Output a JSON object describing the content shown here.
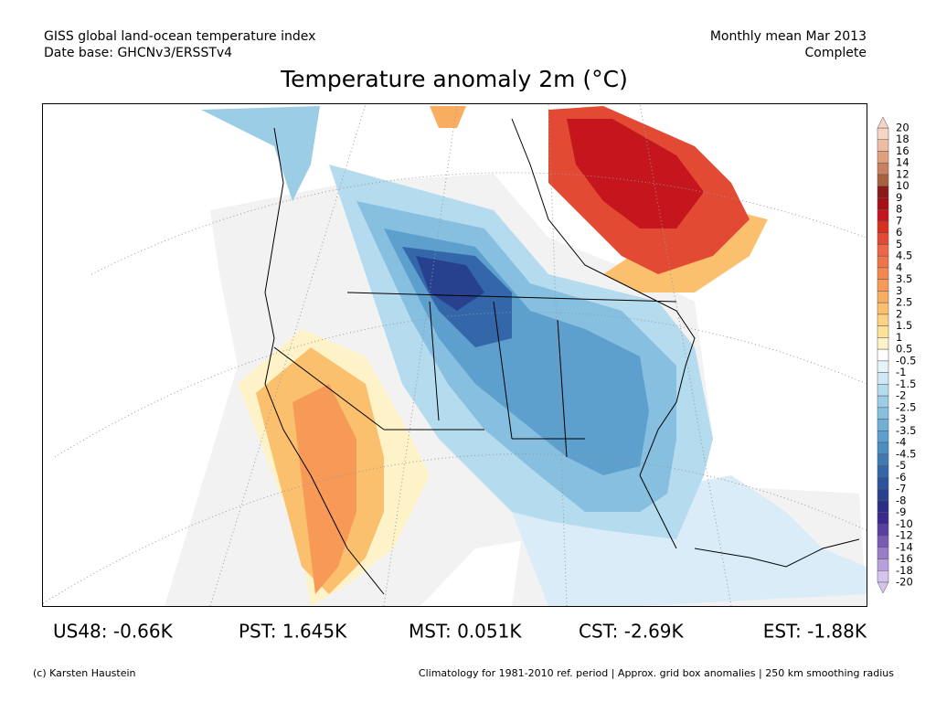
{
  "header": {
    "left_line1": "GISS global land-ocean temperature index",
    "left_line2": "Date base: GHCNv3/ERSSTv4",
    "right_line1": "Monthly mean Mar 2013",
    "right_line2": "Complete"
  },
  "title": "Temperature anomaly 2m (°C)",
  "legend": {
    "labels": [
      20,
      18,
      16,
      14,
      12,
      10,
      9,
      8,
      7,
      6,
      5,
      4.5,
      4,
      3.5,
      3,
      2.5,
      2,
      1.5,
      1,
      0.5,
      -0.5,
      -1,
      -1.5,
      -2,
      -2.5,
      -3,
      -3.5,
      -4,
      -4.5,
      -5,
      -6,
      -7,
      -8,
      -9,
      -10,
      -12,
      -14,
      -16,
      -18,
      -20
    ],
    "colors": [
      "#f5d5c5",
      "#eebba5",
      "#e0a080",
      "#c88060",
      "#a8603e",
      "#8b1a1a",
      "#a50f15",
      "#c4161c",
      "#d7301f",
      "#e34a33",
      "#ef6548",
      "#f0744a",
      "#f4874f",
      "#f79a57",
      "#f9ad61",
      "#fbc06e",
      "#fcd283",
      "#fde39a",
      "#fef2c8",
      "#ffffff",
      "#e6f3fb",
      "#cfe8f5",
      "#b5dbef",
      "#9ccde7",
      "#86bfe0",
      "#70b0d7",
      "#5d9fcd",
      "#4c8dc2",
      "#3f7ab6",
      "#3467aa",
      "#2c549c",
      "#27418e",
      "#2a2f85",
      "#3a2a8f",
      "#5a3ea0",
      "#7a5ab5",
      "#9a7cc8",
      "#b9a0dc",
      "#d5c5ee"
    ]
  },
  "stats": [
    "US48: -0.66K",
    "PST: 1.645K",
    "MST: 0.051K",
    "CST: -2.69K",
    "EST: -1.88K"
  ],
  "footer": {
    "left": "(c) Karsten Haustein",
    "right": "Climatology for 1981-2010 ref. period | Approx. grid box anomalies | 250 km smoothing radius"
  }
}
